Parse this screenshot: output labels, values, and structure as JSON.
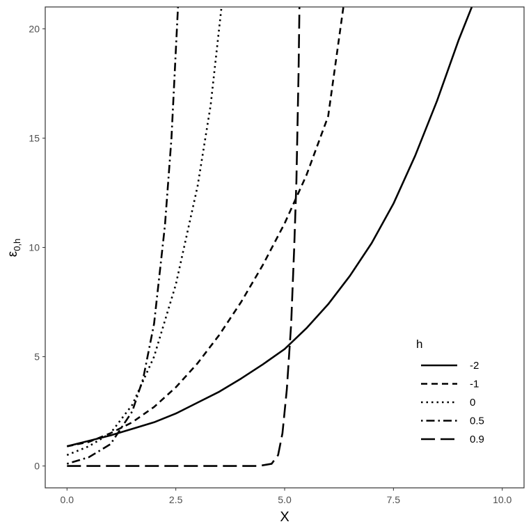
{
  "chart_data": {
    "type": "line",
    "xlabel": "X",
    "ylabel_main": "ε",
    "ylabel_sub": "0,h",
    "xlim": [
      -0.5,
      10.5
    ],
    "ylim": [
      -1,
      21
    ],
    "x_ticks": [
      0,
      2.5,
      5,
      7.5,
      10
    ],
    "x_tick_labels": [
      "0.0",
      "2.5",
      "5.0",
      "7.5",
      "10.0"
    ],
    "y_ticks": [
      0,
      5,
      10,
      15,
      20
    ],
    "y_tick_labels": [
      "0",
      "5",
      "10",
      "15",
      "20"
    ],
    "grid": false,
    "legend": {
      "title": "h",
      "position": "right"
    },
    "series": [
      {
        "name": "-2",
        "dash": "solid",
        "points": [
          [
            0,
            0.9
          ],
          [
            0.5,
            1.15
          ],
          [
            1,
            1.4
          ],
          [
            1.5,
            1.7
          ],
          [
            2,
            2.0
          ],
          [
            2.5,
            2.4
          ],
          [
            3,
            2.9
          ],
          [
            3.5,
            3.4
          ],
          [
            4,
            4.0
          ],
          [
            4.5,
            4.65
          ],
          [
            5,
            5.35
          ],
          [
            5.5,
            6.3
          ],
          [
            6,
            7.4
          ],
          [
            6.5,
            8.7
          ],
          [
            7,
            10.2
          ],
          [
            7.5,
            12.0
          ],
          [
            8,
            14.2
          ],
          [
            8.5,
            16.7
          ],
          [
            9,
            19.5
          ],
          [
            9.3,
            21
          ]
        ]
      },
      {
        "name": "-1",
        "dash": "dashed",
        "points": [
          [
            0,
            0.9
          ],
          [
            0.5,
            1.1
          ],
          [
            1,
            1.5
          ],
          [
            1.5,
            2.0
          ],
          [
            2,
            2.7
          ],
          [
            2.5,
            3.6
          ],
          [
            3,
            4.7
          ],
          [
            3.5,
            6.0
          ],
          [
            4,
            7.5
          ],
          [
            4.5,
            9.2
          ],
          [
            5,
            11.1
          ],
          [
            5.5,
            13.3
          ],
          [
            6,
            16.0
          ],
          [
            6.35,
            21
          ]
        ]
      },
      {
        "name": "0",
        "dash": "dotted",
        "points": [
          [
            0,
            0.5
          ],
          [
            0.5,
            0.9
          ],
          [
            1,
            1.5
          ],
          [
            1.5,
            2.8
          ],
          [
            2,
            5.0
          ],
          [
            2.5,
            8.3
          ],
          [
            3,
            12.8
          ],
          [
            3.3,
            16.5
          ],
          [
            3.55,
            21
          ]
        ]
      },
      {
        "name": "0.5",
        "dash": "dashdot",
        "points": [
          [
            0,
            0.1
          ],
          [
            0.5,
            0.4
          ],
          [
            1,
            1.0
          ],
          [
            1.5,
            2.5
          ],
          [
            1.75,
            4.0
          ],
          [
            2,
            6.5
          ],
          [
            2.25,
            11.0
          ],
          [
            2.4,
            15.0
          ],
          [
            2.55,
            21
          ]
        ]
      },
      {
        "name": "0.9",
        "dash": "longdash",
        "points": [
          [
            0,
            0
          ],
          [
            4.4,
            0
          ],
          [
            4.7,
            0.1
          ],
          [
            4.85,
            0.5
          ],
          [
            4.95,
            1.5
          ],
          [
            5.05,
            3.5
          ],
          [
            5.15,
            6.5
          ],
          [
            5.22,
            10.0
          ],
          [
            5.27,
            13.0
          ],
          [
            5.32,
            18.0
          ],
          [
            5.34,
            21
          ]
        ]
      }
    ]
  }
}
